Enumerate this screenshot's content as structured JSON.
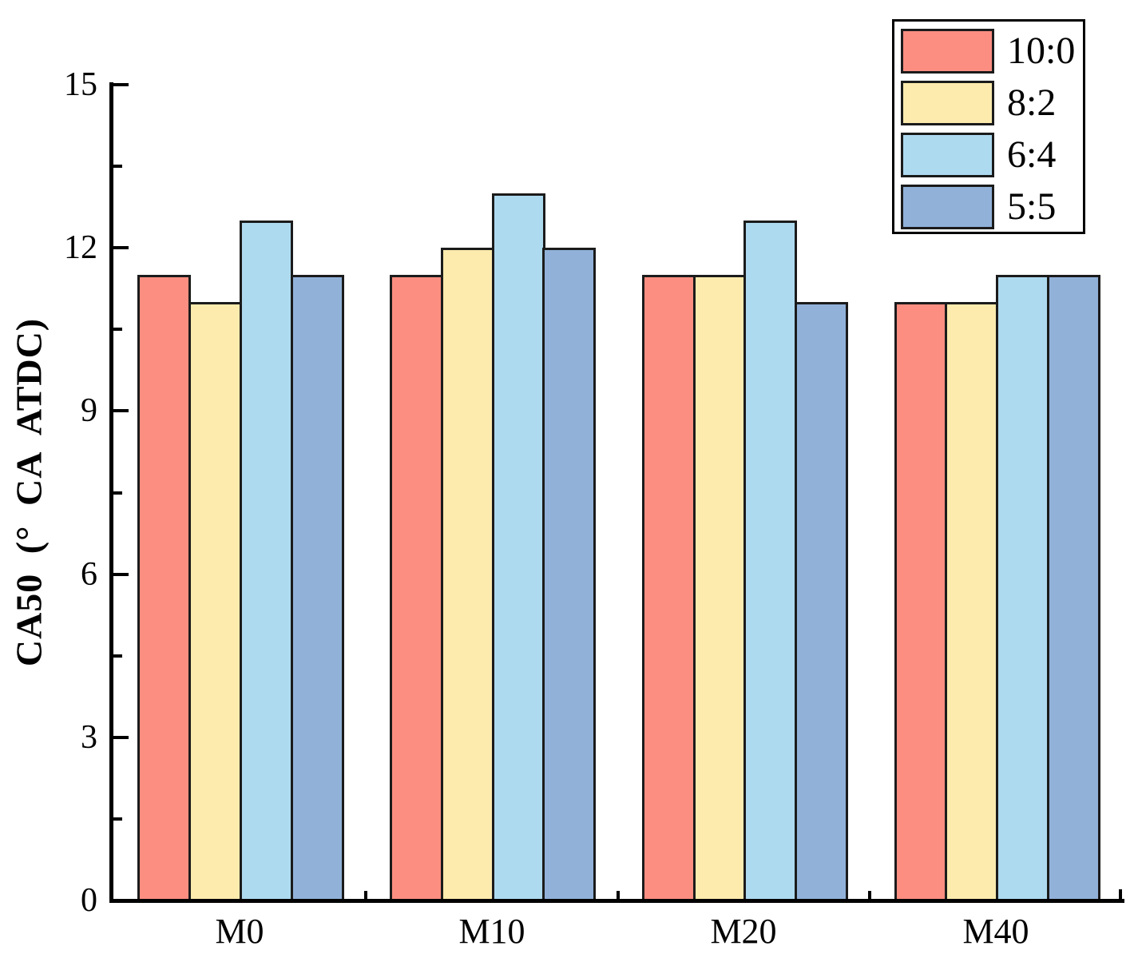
{
  "chart_data": {
    "type": "bar",
    "title": "",
    "categories": [
      "M0",
      "M10",
      "M20",
      "M40"
    ],
    "series": [
      {
        "name": "10:0",
        "color": "#FB8E81",
        "values": [
          11.5,
          11.5,
          11.5,
          11.0
        ]
      },
      {
        "name": "8:2",
        "color": "#FCEBAD",
        "values": [
          11.0,
          12.0,
          11.5,
          11.0
        ]
      },
      {
        "name": "6:4",
        "color": "#AEDAF0",
        "values": [
          12.5,
          13.0,
          12.5,
          11.5
        ]
      },
      {
        "name": "5:5",
        "color": "#91B1D9",
        "values": [
          11.5,
          12.0,
          11.0,
          11.5
        ]
      }
    ],
    "xlabel": "",
    "ylabel": "CA50 (° CA ATDC)",
    "ylim": [
      0,
      15
    ],
    "yticks": [
      0,
      3,
      6,
      9,
      12,
      15
    ],
    "ytick_labels": [
      "0",
      "3",
      "6",
      "9",
      "12",
      "15"
    ],
    "yminor_step": 1.5,
    "xtick_labels": [
      "M0",
      "M10",
      "M20",
      "M40"
    ],
    "legend_position": "top-right",
    "legend_labels": [
      "10:0",
      "8:2",
      "6:4",
      "5:5"
    ],
    "grid": false,
    "bar_edge_color": "#1b1b1b",
    "axis_color": "#000000",
    "background_color": "#ffffff"
  }
}
